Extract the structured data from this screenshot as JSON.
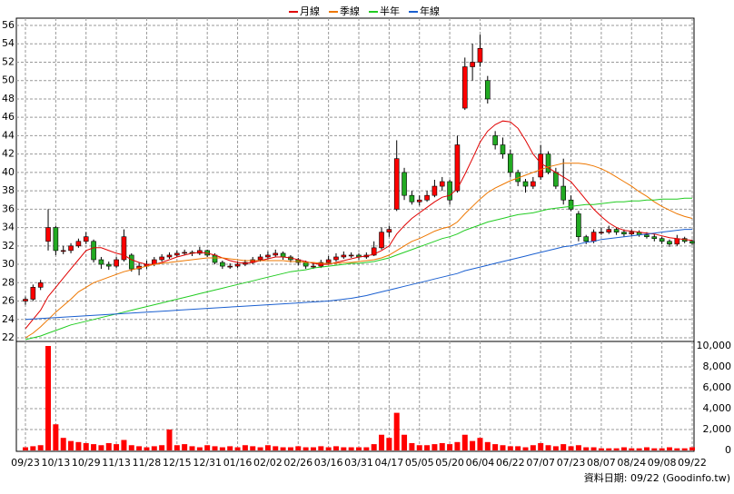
{
  "chart_data": {
    "type": "candlestick",
    "legend": "top",
    "grid": true,
    "up_color": "#ff0000",
    "down_color": "#22aa22",
    "categories": [
      "09/23",
      null,
      null,
      null,
      "10/13",
      null,
      null,
      null,
      "10/29",
      null,
      null,
      null,
      "11/13",
      null,
      null,
      null,
      "11/28",
      null,
      null,
      null,
      "12/15",
      null,
      null,
      null,
      "12/31",
      null,
      null,
      null,
      "01/16",
      null,
      null,
      null,
      "02/02",
      null,
      null,
      null,
      "02/26",
      null,
      null,
      null,
      "03/16",
      null,
      null,
      null,
      "03/31",
      null,
      null,
      null,
      "04/17",
      null,
      null,
      null,
      "05/05",
      null,
      null,
      null,
      "05/20",
      null,
      null,
      null,
      "06/04",
      null,
      null,
      null,
      "06/22",
      null,
      null,
      null,
      "07/07",
      null,
      null,
      null,
      "07/23",
      null,
      null,
      null,
      "08/07",
      null,
      null,
      null,
      "08/24",
      null,
      null,
      null,
      "09/08",
      null,
      null,
      null,
      "09/22"
    ],
    "open": [
      26,
      26.2,
      27.5,
      32.5,
      34,
      31.5,
      31.5,
      32,
      32.5,
      32.5,
      30.5,
      30,
      29.8,
      30.5,
      31,
      29.5,
      29.8,
      30,
      30.5,
      30.8,
      31,
      31.2,
      31.3,
      31.2,
      31.5,
      31,
      30.2,
      29.8,
      29.8,
      30,
      30.2,
      30.5,
      30.8,
      31,
      31.2,
      30.8,
      30.5,
      30.2,
      29.8,
      29.8,
      30.2,
      30.5,
      30.8,
      31,
      31,
      30.8,
      31,
      31.8,
      33.5,
      36,
      40,
      37.5,
      36.8,
      37,
      37.5,
      38.5,
      39,
      38,
      47,
      51.5,
      52,
      50,
      44,
      43,
      42,
      40,
      39,
      38.5,
      39.5,
      42,
      40,
      38.5,
      37,
      35.5,
      33,
      32.5,
      33.5,
      33.5,
      33.8,
      33.5,
      33.3,
      33.5,
      33.2,
      33,
      32.8,
      32.5,
      32.2,
      32.8,
      32.5
    ],
    "high": [
      26.5,
      27.8,
      28.3,
      36,
      34.2,
      32,
      32.3,
      32.8,
      33.5,
      32.7,
      30.8,
      30.3,
      30.8,
      33.8,
      31.2,
      30.2,
      30.4,
      30.8,
      31.1,
      31.3,
      31.5,
      31.6,
      31.5,
      31.9,
      31.6,
      31.2,
      30.4,
      30.1,
      30.3,
      30.5,
      30.8,
      31.1,
      31.4,
      31.6,
      31.4,
      31,
      30.7,
      30.4,
      30.1,
      30.5,
      30.9,
      31.2,
      31.4,
      31.3,
      31.2,
      31.3,
      32.5,
      34,
      34.2,
      43.5,
      40.5,
      38,
      37.5,
      38,
      39.2,
      39.5,
      39.2,
      44,
      52.5,
      54,
      55,
      50.5,
      44.5,
      43.8,
      42.5,
      40.3,
      39.3,
      39.5,
      43,
      42.3,
      40.5,
      41.5,
      37.5,
      35.8,
      33.2,
      33.8,
      34,
      34.2,
      34,
      33.8,
      33.8,
      33.7,
      33.5,
      33.3,
      33,
      32.7,
      33.2,
      33,
      32.7
    ],
    "low": [
      25.6,
      26,
      27.2,
      31.5,
      31,
      31.1,
      31.2,
      31.8,
      32.2,
      30.2,
      29.5,
      29.4,
      29.6,
      30.3,
      29.2,
      28.8,
      29.5,
      29.8,
      30.3,
      30.6,
      30.8,
      31,
      30.9,
      31,
      30.8,
      30,
      29.5,
      29.5,
      29.6,
      29.8,
      30,
      30.3,
      30.6,
      30.8,
      30.5,
      30.2,
      29.9,
      29.5,
      29.5,
      29.6,
      30,
      30.3,
      30.6,
      30.7,
      30.5,
      30.6,
      30.9,
      31.6,
      33,
      35.8,
      37,
      36.5,
      36.4,
      36.8,
      37.3,
      38,
      36.5,
      37.8,
      46.8,
      50,
      51.5,
      47.5,
      42.5,
      41.5,
      39.5,
      38.5,
      37.8,
      38.2,
      39.2,
      39.8,
      38.2,
      36.5,
      35.8,
      32.5,
      32.2,
      32.3,
      33.2,
      33.3,
      33.2,
      33,
      33.1,
      33,
      32.8,
      32.5,
      32.2,
      31.9,
      32,
      32.3,
      32.1
    ],
    "close": [
      26.2,
      27.5,
      28,
      34,
      31.5,
      31.5,
      32,
      32.5,
      33,
      30.5,
      30,
      29.8,
      30.5,
      33,
      29.5,
      29.8,
      30,
      30.5,
      30.8,
      31,
      31.2,
      31.3,
      31.2,
      31.5,
      31,
      30.2,
      29.8,
      29.8,
      30,
      30.2,
      30.5,
      30.8,
      31,
      31.2,
      30.8,
      30.5,
      30.2,
      29.8,
      29.8,
      30.2,
      30.5,
      30.8,
      31,
      31,
      30.8,
      31,
      31.8,
      33.5,
      33.8,
      41.5,
      37.5,
      36.8,
      37,
      37.5,
      38.5,
      39,
      37,
      43,
      51.5,
      52,
      53.5,
      48,
      43,
      42,
      40,
      39,
      38.5,
      39,
      42,
      40,
      38.5,
      37,
      36,
      33,
      32.5,
      33.5,
      33.5,
      33.8,
      33.5,
      33.3,
      33.5,
      33.2,
      33,
      32.8,
      32.5,
      32.2,
      32.8,
      32.5,
      32.3
    ],
    "ylim": [
      22,
      56
    ],
    "yticks": [
      22,
      24,
      26,
      28,
      30,
      32,
      34,
      36,
      38,
      40,
      42,
      44,
      46,
      48,
      50,
      52,
      54,
      56
    ],
    "series": [
      {
        "name": "月線",
        "color": "#e00000",
        "values": [
          23,
          24,
          25,
          26.5,
          27.5,
          28.5,
          29.5,
          30.5,
          31.5,
          31.8,
          31.8,
          31.5,
          31.2,
          31,
          30.5,
          30.2,
          30,
          30,
          30.2,
          30.5,
          30.8,
          31,
          31.2,
          31.3,
          31.2,
          31,
          30.7,
          30.4,
          30.2,
          30.1,
          30.2,
          30.4,
          30.6,
          30.8,
          30.8,
          30.7,
          30.5,
          30.3,
          30.1,
          30,
          30,
          30.2,
          30.4,
          30.6,
          30.8,
          30.9,
          31.1,
          31.5,
          32,
          33.3,
          34.2,
          35,
          35.6,
          36.2,
          36.8,
          37.3,
          37.5,
          38.2,
          39.8,
          41.5,
          43.3,
          44.5,
          45.2,
          45.6,
          45.5,
          44.8,
          43.5,
          42,
          41,
          40.5,
          40,
          39.5,
          39,
          38,
          37,
          36,
          35.2,
          34.5,
          34,
          33.7,
          33.6,
          33.5,
          33.4,
          33.3,
          33.1,
          32.9,
          32.8,
          32.7,
          32.6
        ]
      },
      {
        "name": "季線",
        "color": "#ee7700",
        "values": [
          22,
          22.5,
          23.2,
          24,
          24.8,
          25.5,
          26.2,
          27,
          27.5,
          28,
          28.3,
          28.6,
          28.9,
          29.2,
          29.4,
          29.6,
          29.8,
          30,
          30.1,
          30.2,
          30.3,
          30.4,
          30.5,
          30.6,
          30.7,
          30.7,
          30.7,
          30.6,
          30.5,
          30.4,
          30.4,
          30.4,
          30.4,
          30.4,
          30.4,
          30.3,
          30.3,
          30.2,
          30.2,
          30.1,
          30.1,
          30.1,
          30.2,
          30.2,
          30.3,
          30.4,
          30.5,
          30.7,
          31,
          31.5,
          32,
          32.5,
          32.8,
          33.2,
          33.6,
          33.9,
          34.1,
          34.6,
          35.5,
          36.3,
          37.1,
          37.8,
          38.3,
          38.7,
          39.1,
          39.4,
          39.7,
          40,
          40.3,
          40.6,
          40.8,
          41,
          41,
          41,
          40.9,
          40.7,
          40.4,
          40,
          39.5,
          39,
          38.5,
          37.9,
          37.4,
          36.8,
          36.3,
          35.9,
          35.5,
          35.2,
          35
        ]
      },
      {
        "name": "半年",
        "color": "#22cc22",
        "values": [
          21.8,
          22,
          22.2,
          22.5,
          22.8,
          23.1,
          23.4,
          23.6,
          23.8,
          24,
          24.2,
          24.4,
          24.6,
          24.8,
          25,
          25.2,
          25.4,
          25.6,
          25.8,
          26,
          26.2,
          26.4,
          26.6,
          26.8,
          27,
          27.2,
          27.4,
          27.6,
          27.8,
          28,
          28.2,
          28.4,
          28.6,
          28.8,
          29,
          29.2,
          29.3,
          29.4,
          29.6,
          29.7,
          29.8,
          29.9,
          30,
          30.1,
          30.1,
          30.2,
          30.3,
          30.5,
          30.7,
          31,
          31.3,
          31.6,
          31.9,
          32.2,
          32.5,
          32.8,
          33,
          33.3,
          33.7,
          34,
          34.3,
          34.6,
          34.8,
          35,
          35.2,
          35.4,
          35.5,
          35.6,
          35.8,
          36,
          36.1,
          36.2,
          36.3,
          36.4,
          36.5,
          36.5,
          36.6,
          36.7,
          36.8,
          36.8,
          36.9,
          36.9,
          37,
          37,
          37.1,
          37.1,
          37.1,
          37.2,
          37.2
        ]
      },
      {
        "name": "年線",
        "color": "#1a5fd0",
        "values": [
          24,
          24.05,
          24.1,
          24.15,
          24.2,
          24.25,
          24.3,
          24.35,
          24.4,
          24.45,
          24.5,
          24.55,
          24.6,
          24.65,
          24.7,
          24.75,
          24.8,
          24.85,
          24.9,
          24.95,
          25,
          25.05,
          25.1,
          25.15,
          25.2,
          25.25,
          25.3,
          25.35,
          25.4,
          25.45,
          25.5,
          25.55,
          25.6,
          25.65,
          25.7,
          25.75,
          25.8,
          25.85,
          25.9,
          25.95,
          26,
          26.1,
          26.2,
          26.3,
          26.45,
          26.6,
          26.8,
          27,
          27.2,
          27.4,
          27.6,
          27.8,
          28,
          28.2,
          28.4,
          28.6,
          28.8,
          29,
          29.3,
          29.5,
          29.7,
          29.9,
          30.1,
          30.3,
          30.5,
          30.7,
          30.9,
          31.1,
          31.3,
          31.5,
          31.7,
          31.9,
          32,
          32.2,
          32.4,
          32.5,
          32.7,
          32.8,
          32.9,
          33,
          33.1,
          33.2,
          33.3,
          33.4,
          33.5,
          33.6,
          33.7,
          33.8,
          33.8
        ]
      }
    ],
    "volume": {
      "color": "#ff0000",
      "ylim": [
        0,
        10000
      ],
      "yticks": [
        0,
        {
          "value": 2000,
          "label": "2,000"
        },
        {
          "value": 4000,
          "label": "4,000"
        },
        {
          "value": 6000,
          "label": "6,000"
        },
        {
          "value": 8000,
          "label": "8,000"
        },
        {
          "value": 10000,
          "label": "10,000"
        }
      ],
      "values": [
        300,
        400,
        500,
        10000,
        2500,
        1200,
        900,
        800,
        700,
        600,
        500,
        700,
        600,
        1000,
        500,
        400,
        300,
        400,
        500,
        2000,
        500,
        600,
        400,
        300,
        500,
        400,
        300,
        400,
        300,
        500,
        400,
        300,
        500,
        400,
        300,
        300,
        400,
        300,
        300,
        400,
        300,
        400,
        300,
        300,
        300,
        300,
        600,
        1500,
        1200,
        3600,
        1500,
        700,
        500,
        500,
        600,
        700,
        600,
        800,
        1500,
        900,
        1200,
        800,
        600,
        500,
        400,
        400,
        300,
        500,
        700,
        500,
        400,
        600,
        400,
        500,
        300,
        300,
        200,
        200,
        200,
        300,
        200,
        200,
        300,
        200,
        200,
        300,
        200,
        200,
        300
      ]
    },
    "source": "資料日期: 09/22 (Goodinfo.tw)"
  }
}
